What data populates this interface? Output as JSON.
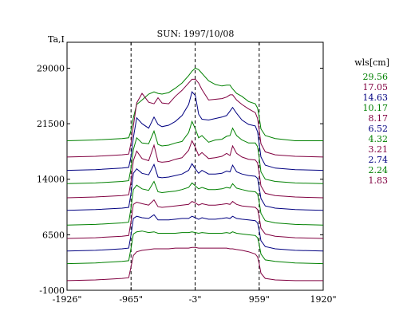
{
  "chart_data": {
    "type": "line",
    "title": "SUN: 1997/10/08",
    "ylabel": "Ta,I",
    "xlabel": "",
    "x_ticks": [
      "-1926\"",
      "-965\"",
      "-3\"",
      "959\"",
      "1920\""
    ],
    "x_tick_values": [
      -1926,
      -965,
      -3,
      959,
      1920
    ],
    "y_ticks": [
      "29000",
      "21500",
      "14000",
      "6500",
      "-1000"
    ],
    "y_tick_values": [
      29000,
      21500,
      14000,
      6500,
      -1000
    ],
    "xlim": [
      -1926,
      1920
    ],
    "ylim": [
      -1000,
      32500
    ],
    "dashed_markers": [
      -965,
      -3,
      959
    ],
    "legend_title": "wls[cm]",
    "legend_placement": "right",
    "grid": false,
    "x_samples": [
      -1926,
      -1500,
      -1100,
      -1000,
      -965,
      -930,
      -880,
      -800,
      -700,
      -620,
      -560,
      -500,
      -400,
      -300,
      -200,
      -100,
      -50,
      0,
      50,
      100,
      200,
      300,
      400,
      470,
      520,
      560,
      620,
      700,
      800,
      900,
      935,
      959,
      985,
      1050,
      1200,
      1500,
      1920
    ],
    "series": [
      {
        "name": "29.56",
        "color": "#008000",
        "values": [
          19200,
          19300,
          19500,
          19600,
          20600,
          22300,
          24100,
          24700,
          25500,
          25800,
          25600,
          25500,
          25700,
          26300,
          27000,
          28000,
          28600,
          29000,
          28800,
          28300,
          27300,
          26800,
          26600,
          26700,
          26700,
          26200,
          25600,
          25200,
          24500,
          24200,
          23600,
          22400,
          20800,
          19900,
          19500,
          19200,
          19200
        ]
      },
      {
        "name": "17.05",
        "color": "#800040",
        "values": [
          17000,
          17100,
          17300,
          17400,
          18900,
          21200,
          24300,
          25600,
          24400,
          24200,
          25000,
          24300,
          24200,
          25200,
          26000,
          27000,
          27500,
          27500,
          27000,
          26100,
          24700,
          24800,
          24900,
          25100,
          25400,
          25400,
          24700,
          24100,
          23500,
          23000,
          22200,
          20600,
          18800,
          17700,
          17300,
          17100,
          17000
        ]
      },
      {
        "name": "14.63",
        "color": "#000080",
        "values": [
          15200,
          15300,
          15500,
          15600,
          17100,
          19600,
          22300,
          21500,
          20900,
          22400,
          21400,
          21100,
          21300,
          21800,
          22600,
          24100,
          25800,
          25300,
          22800,
          22100,
          22000,
          22200,
          22400,
          22600,
          23200,
          23700,
          22900,
          22000,
          21400,
          21200,
          20400,
          18800,
          17000,
          15900,
          15500,
          15300,
          15200
        ]
      },
      {
        "name": "10.17",
        "color": "#008000",
        "values": [
          13400,
          13500,
          13700,
          13800,
          15500,
          18000,
          19600,
          18900,
          18800,
          20500,
          18700,
          18500,
          18600,
          18900,
          19100,
          20300,
          21800,
          20800,
          19600,
          19900,
          19000,
          19300,
          19400,
          19800,
          19900,
          20900,
          19900,
          19300,
          18900,
          18900,
          18400,
          16900,
          15000,
          14000,
          13700,
          13500,
          13400
        ]
      },
      {
        "name": "8.17",
        "color": "#800040",
        "values": [
          11500,
          11600,
          11800,
          11900,
          13700,
          16500,
          17800,
          16800,
          16500,
          18600,
          16400,
          16300,
          16400,
          16700,
          16900,
          17900,
          19200,
          18300,
          17200,
          17600,
          16800,
          16900,
          17100,
          17500,
          17200,
          18500,
          17500,
          17000,
          16700,
          16600,
          16200,
          14800,
          13100,
          12100,
          11800,
          11600,
          11500
        ]
      },
      {
        "name": "6.52",
        "color": "#000080",
        "values": [
          9800,
          9900,
          10100,
          10200,
          12100,
          14800,
          15400,
          14800,
          14600,
          16000,
          14300,
          14200,
          14300,
          14500,
          14700,
          15200,
          16100,
          15400,
          14800,
          15200,
          14700,
          14700,
          14800,
          15100,
          15000,
          15900,
          15000,
          14700,
          14500,
          14400,
          14100,
          12900,
          11400,
          10400,
          10100,
          9900,
          9800
        ]
      },
      {
        "name": "4.32",
        "color": "#008000",
        "values": [
          7800,
          7900,
          8100,
          8200,
          10100,
          12600,
          13200,
          12700,
          12500,
          13700,
          12300,
          12200,
          12300,
          12400,
          12600,
          12900,
          13500,
          13100,
          12700,
          12900,
          12600,
          12600,
          12700,
          12900,
          12800,
          13400,
          12800,
          12600,
          12400,
          12300,
          12000,
          10900,
          9400,
          8400,
          8100,
          7900,
          7800
        ]
      },
      {
        "name": "3.21",
        "color": "#800040",
        "values": [
          6000,
          6100,
          6300,
          6400,
          8300,
          10600,
          10900,
          10700,
          10500,
          11200,
          10300,
          10200,
          10300,
          10400,
          10500,
          10600,
          11000,
          10800,
          10500,
          10700,
          10500,
          10500,
          10600,
          10700,
          10600,
          11000,
          10600,
          10400,
          10300,
          10200,
          9900,
          8900,
          7400,
          6600,
          6300,
          6100,
          6000
        ]
      },
      {
        "name": "2.74",
        "color": "#000080",
        "values": [
          4300,
          4400,
          4600,
          4700,
          6500,
          8700,
          9000,
          8800,
          8700,
          9200,
          8500,
          8500,
          8500,
          8600,
          8700,
          8700,
          9000,
          8800,
          8600,
          8800,
          8600,
          8600,
          8700,
          8800,
          8700,
          9000,
          8700,
          8600,
          8500,
          8400,
          8100,
          7100,
          5700,
          4900,
          4600,
          4400,
          4300
        ]
      },
      {
        "name": "2.24",
        "color": "#008000",
        "values": [
          2600,
          2700,
          2900,
          3000,
          4700,
          6600,
          6900,
          7000,
          6800,
          6900,
          6700,
          6700,
          6700,
          6700,
          6800,
          6800,
          6900,
          6800,
          6700,
          6800,
          6700,
          6700,
          6700,
          6800,
          6700,
          6900,
          6700,
          6600,
          6500,
          6400,
          6100,
          5200,
          3900,
          3100,
          2900,
          2700,
          2600
        ]
      },
      {
        "name": "1.83",
        "color": "#800040",
        "values": [
          300,
          400,
          600,
          700,
          2200,
          3700,
          4200,
          4400,
          4500,
          4600,
          4600,
          4600,
          4600,
          4700,
          4700,
          4700,
          4800,
          4800,
          4700,
          4700,
          4700,
          4700,
          4700,
          4700,
          4600,
          4600,
          4500,
          4400,
          4200,
          3900,
          3500,
          2600,
          1300,
          600,
          400,
          300,
          300
        ]
      }
    ]
  }
}
